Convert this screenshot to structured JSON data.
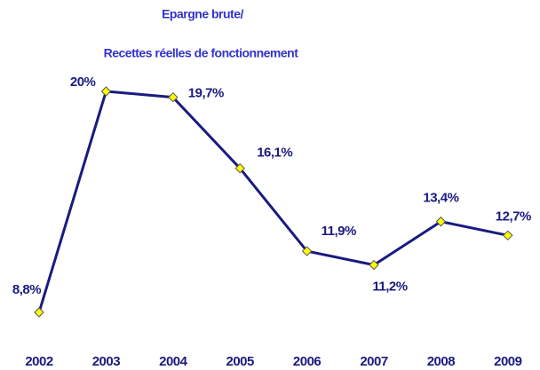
{
  "chart_data": {
    "type": "line",
    "title": "Epargne brute/",
    "subtitle": "Recettes réelles de fonctionnement",
    "categories": [
      "2002",
      "2003",
      "2004",
      "2005",
      "2006",
      "2007",
      "2008",
      "2009"
    ],
    "series": [
      {
        "color": "#1a1a80",
        "marker_color": "#ffff00",
        "values": [
          8.8,
          20,
          19.7,
          16.1,
          11.9,
          11.2,
          13.4,
          12.7
        ],
        "value_labels": [
          "8,8%",
          "20%",
          "19,7%",
          "16,1%",
          "11,9%",
          "11,2%",
          "13,4%",
          "12,7%"
        ]
      }
    ]
  }
}
